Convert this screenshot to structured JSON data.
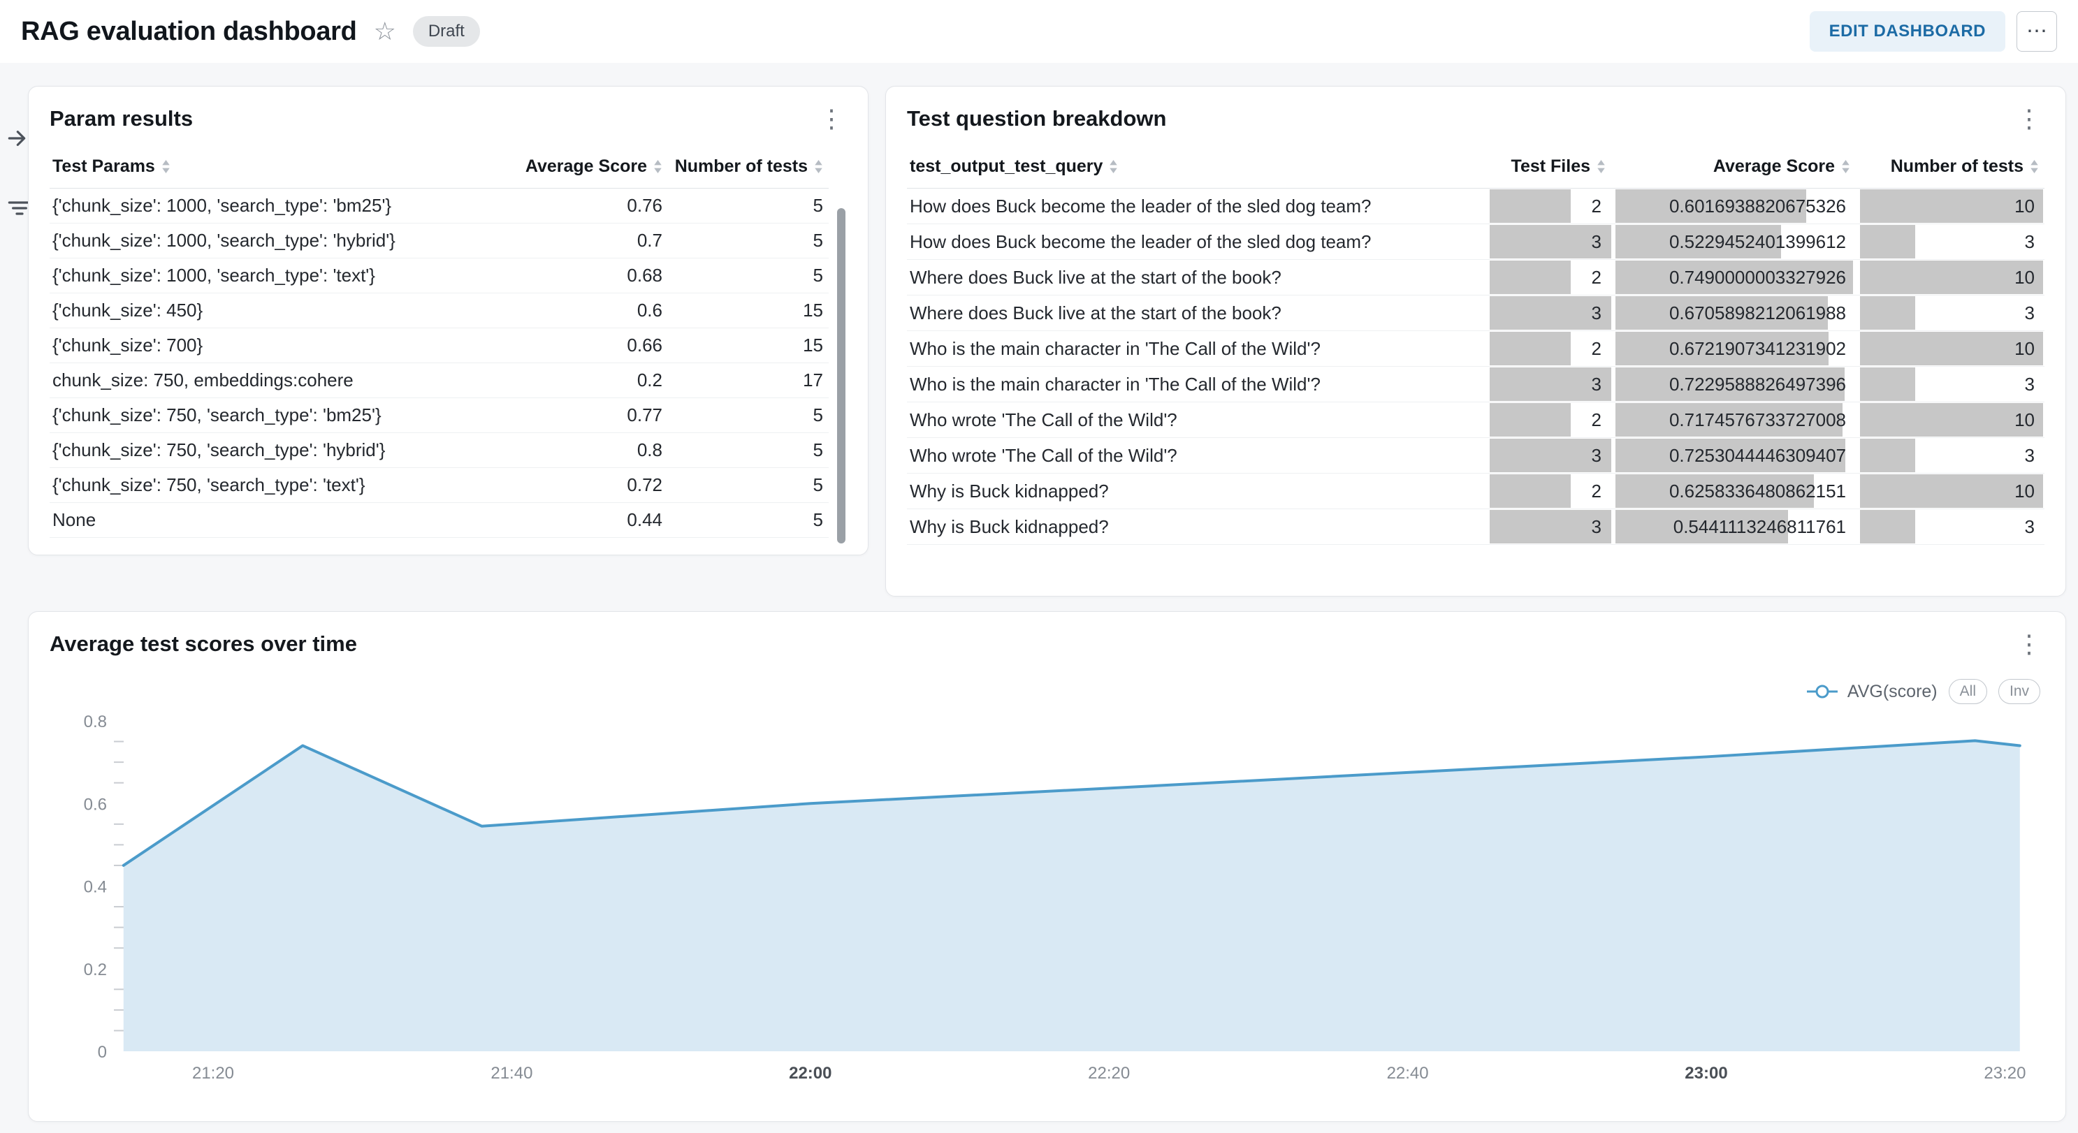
{
  "header": {
    "title": "RAG evaluation dashboard",
    "status_badge": "Draft",
    "edit_button": "EDIT DASHBOARD",
    "more_button": "⋯"
  },
  "icons": {
    "favorite": "star-outline",
    "more": "ellipsis-horizontal",
    "panel_menu": "kebab-vertical",
    "sort": "sort-arrows",
    "rail": [
      "expand-panel",
      "filter"
    ]
  },
  "panels": {
    "param_results": {
      "title": "Param results",
      "columns": [
        "Test Params",
        "Average Score",
        "Number of tests"
      ],
      "rows": [
        [
          "{'chunk_size': 1000, 'search_type': 'bm25'}",
          "0.76",
          "5"
        ],
        [
          "{'chunk_size': 1000, 'search_type': 'hybrid'}",
          "0.7",
          "5"
        ],
        [
          "{'chunk_size': 1000, 'search_type': 'text'}",
          "0.68",
          "5"
        ],
        [
          "{'chunk_size': 450}",
          "0.6",
          "15"
        ],
        [
          "{'chunk_size': 700}",
          "0.66",
          "15"
        ],
        [
          "chunk_size: 750, embeddings:cohere",
          "0.2",
          "17"
        ],
        [
          "{'chunk_size': 750, 'search_type': 'bm25'}",
          "0.77",
          "5"
        ],
        [
          "{'chunk_size': 750, 'search_type': 'hybrid'}",
          "0.8",
          "5"
        ],
        [
          "{'chunk_size': 750, 'search_type': 'text'}",
          "0.72",
          "5"
        ],
        [
          "None",
          "0.44",
          "5"
        ]
      ]
    },
    "question_breakdown": {
      "title": "Test question breakdown",
      "columns": [
        "test_output_test_query",
        "Test Files",
        "Average Score",
        "Number of tests"
      ],
      "rows": [
        {
          "query": "How does Buck become the leader of the sled dog team?",
          "test_files": 2,
          "avg_score": "0.6016938820675326",
          "num_tests": 10
        },
        {
          "query": "How does Buck become the leader of the sled dog team?",
          "test_files": 3,
          "avg_score": "0.5229452401399612",
          "num_tests": 3
        },
        {
          "query": "Where does Buck live at the start of the book?",
          "test_files": 2,
          "avg_score": "0.7490000003327926",
          "num_tests": 10
        },
        {
          "query": "Where does Buck live at the start of the book?",
          "test_files": 3,
          "avg_score": "0.6705898212061988",
          "num_tests": 3
        },
        {
          "query": "Who is the main character in 'The Call of the Wild'?",
          "test_files": 2,
          "avg_score": "0.6721907341231902",
          "num_tests": 10
        },
        {
          "query": "Who is the main character in 'The Call of the Wild'?",
          "test_files": 3,
          "avg_score": "0.7229588826497396",
          "num_tests": 3
        },
        {
          "query": "Who wrote 'The Call of the Wild'?",
          "test_files": 2,
          "avg_score": "0.7174576733727008",
          "num_tests": 10
        },
        {
          "query": "Who wrote 'The Call of the Wild'?",
          "test_files": 3,
          "avg_score": "0.7253044446309407",
          "num_tests": 3
        },
        {
          "query": "Why is Buck kidnapped?",
          "test_files": 2,
          "avg_score": "0.6258336480862151",
          "num_tests": 10
        },
        {
          "query": "Why is Buck kidnapped?",
          "test_files": 3,
          "avg_score": "0.5441113246811761",
          "num_tests": 3
        }
      ],
      "bar_color": "#c7c7c7"
    }
  },
  "chart_data": {
    "type": "area",
    "title": "Average test scores over time",
    "legend": {
      "series_label": "AVG(score)",
      "buttons": [
        "All",
        "Inv"
      ]
    },
    "series": [
      {
        "name": "AVG(score)",
        "x": [
          "21:14",
          "21:26",
          "21:38",
          "22:00",
          "22:20",
          "22:40",
          "23:00",
          "23:18",
          "23:21"
        ],
        "y": [
          0.45,
          0.74,
          0.545,
          0.6,
          0.637,
          0.675,
          0.713,
          0.752,
          0.74
        ]
      }
    ],
    "x_axis": {
      "ticks": [
        "21:20",
        "21:40",
        "22:00",
        "22:20",
        "22:40",
        "23:00",
        "23:20"
      ],
      "emphasized_ticks": [
        "22:00",
        "23:00"
      ]
    },
    "y_axis": {
      "ticks": [
        0,
        0.2,
        0.4,
        0.6,
        0.8
      ],
      "minor_step": 0.05,
      "min": 0,
      "max": 0.8
    },
    "colors": {
      "line": "#4b9bca",
      "fill": "#d9e9f4"
    },
    "grid": false,
    "legend_position": "top-right"
  }
}
